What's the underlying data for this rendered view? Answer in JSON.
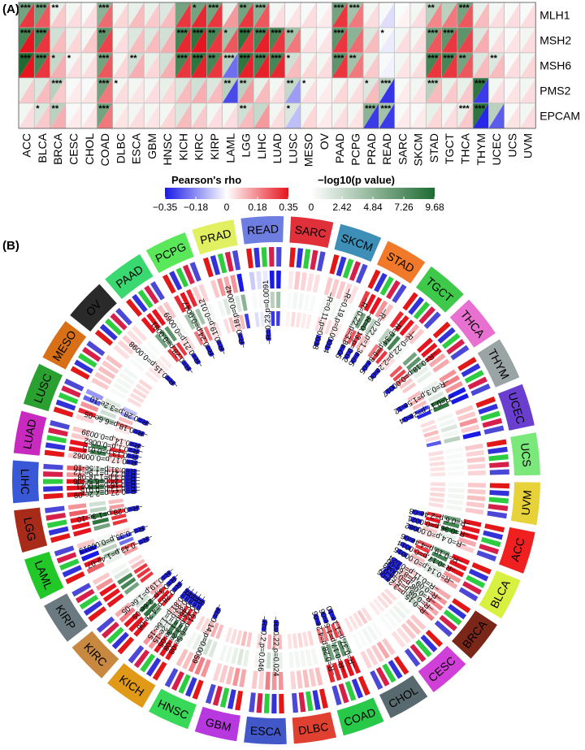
{
  "panel_a_label": "(A)",
  "panel_b_label": "(B)",
  "chart_data": [
    {
      "type": "heatmap",
      "cancers": [
        "ACC",
        "BLCA",
        "BRCA",
        "CESC",
        "CHOL",
        "COAD",
        "DLBC",
        "ESCA",
        "GBM",
        "HNSC",
        "KICH",
        "KIRC",
        "KIRP",
        "LAML",
        "LGG",
        "LIHC",
        "LUAD",
        "LUSC",
        "MESO",
        "OV",
        "PAAD",
        "PCPG",
        "PRAD",
        "READ",
        "SARC",
        "SKCM",
        "STAD",
        "TGCT",
        "THCA",
        "THYM",
        "UCEC",
        "UCS",
        "UVM"
      ],
      "genes": [
        "MLH1",
        "MSH2",
        "MSH6",
        "PMS2",
        "EPCAM"
      ],
      "rho": [
        [
          0.3,
          0.25,
          0.08,
          0.05,
          0.05,
          0.22,
          0.06,
          0.1,
          0.08,
          0.1,
          0.3,
          0.32,
          0.3,
          0.15,
          0.3,
          0.25,
          0.05,
          0.04,
          0.05,
          0.03,
          0.3,
          0.2,
          0.05,
          -0.05,
          0.02,
          0.05,
          0.18,
          0.2,
          0.25,
          0.1,
          0.05,
          0.05,
          0.05
        ],
        [
          0.35,
          0.3,
          0.1,
          0.06,
          0.08,
          0.28,
          0.05,
          0.1,
          0.1,
          0.12,
          0.32,
          0.35,
          0.3,
          0.25,
          0.3,
          0.33,
          0.3,
          0.2,
          0.05,
          0.04,
          0.3,
          0.22,
          0.1,
          -0.03,
          0.05,
          0.05,
          0.25,
          0.3,
          0.28,
          0.12,
          0.05,
          0.04,
          0.05
        ],
        [
          0.35,
          0.3,
          0.12,
          0.05,
          0.05,
          0.25,
          0.06,
          0.12,
          0.06,
          0.12,
          0.3,
          0.33,
          0.3,
          -0.22,
          0.33,
          0.33,
          0.32,
          0.1,
          0.06,
          0.05,
          0.3,
          0.2,
          0.08,
          -0.02,
          0.04,
          0.05,
          0.3,
          0.3,
          0.25,
          0.1,
          0.1,
          0.05,
          0.06
        ],
        [
          0.08,
          0.1,
          0.08,
          0.03,
          0.04,
          0.2,
          0.05,
          0.04,
          0.05,
          0.06,
          0.1,
          0.12,
          0.1,
          -0.28,
          0.15,
          0.1,
          0.05,
          -0.15,
          0.05,
          0.03,
          0.06,
          0.05,
          0.1,
          -0.31,
          0.03,
          0.04,
          0.1,
          0.08,
          0.08,
          -0.3,
          0.05,
          0.04,
          0.05
        ],
        [
          0.05,
          0.08,
          0.12,
          0.03,
          0.04,
          0.2,
          0.04,
          0.05,
          0.04,
          0.06,
          0.1,
          0.08,
          0.05,
          0.05,
          0.1,
          0.15,
          0.05,
          -0.1,
          0.06,
          0.03,
          0.05,
          0.04,
          -0.3,
          -0.3,
          0.03,
          0.03,
          0.06,
          0.05,
          0.08,
          -0.33,
          -0.25,
          0.04,
          0.05
        ]
      ],
      "neglog10p": [
        [
          6.0,
          6.0,
          1.0,
          0.5,
          0.3,
          5.0,
          0.5,
          1.0,
          1.0,
          1.5,
          6.0,
          6.0,
          6.0,
          1.0,
          6.0,
          5.0,
          0.5,
          0.3,
          0.3,
          0.3,
          6.0,
          4.0,
          0.5,
          0.3,
          0.2,
          0.5,
          3.0,
          3.0,
          6.0,
          1.0,
          0.5,
          0.3,
          0.3
        ],
        [
          8.0,
          8.0,
          2.0,
          0.8,
          0.5,
          7.0,
          0.5,
          1.5,
          1.5,
          2.0,
          8.0,
          9.0,
          8.0,
          4.0,
          9.0,
          8.0,
          8.0,
          4.0,
          0.5,
          0.3,
          7.0,
          5.0,
          1.5,
          0.3,
          0.5,
          0.5,
          6.0,
          7.0,
          7.0,
          1.5,
          0.5,
          0.3,
          0.5
        ],
        [
          9.68,
          8.0,
          2.5,
          0.5,
          0.5,
          6.0,
          0.5,
          2.0,
          1.0,
          2.0,
          8.0,
          9.0,
          8.0,
          3.0,
          9.0,
          8.0,
          8.0,
          2.0,
          0.5,
          0.5,
          7.0,
          4.0,
          1.0,
          0.3,
          0.5,
          0.5,
          8.0,
          8.0,
          6.0,
          1.5,
          1.5,
          0.3,
          0.5
        ],
        [
          1.0,
          1.5,
          3.0,
          0.3,
          0.3,
          6.0,
          0.5,
          0.5,
          0.5,
          1.0,
          1.5,
          2.0,
          1.5,
          3.0,
          3.0,
          1.0,
          0.5,
          2.5,
          0.5,
          0.3,
          0.5,
          0.5,
          1.5,
          3.0,
          0.3,
          0.5,
          3.0,
          1.0,
          1.0,
          9.0,
          0.5,
          0.3,
          0.5
        ],
        [
          0.5,
          1.5,
          3.0,
          0.3,
          0.3,
          6.0,
          0.5,
          0.5,
          0.5,
          0.5,
          1.5,
          1.0,
          0.5,
          0.5,
          2.0,
          2.5,
          0.5,
          1.5,
          0.5,
          0.3,
          0.5,
          0.5,
          5.0,
          4.0,
          0.3,
          0.3,
          1.0,
          0.5,
          1.0,
          9.0,
          3.0,
          0.3,
          0.5
        ]
      ],
      "stars": [
        [
          "***",
          "***",
          "**",
          "",
          "",
          "***",
          "",
          "",
          "",
          "",
          "",
          "*",
          "***",
          "",
          "**",
          "***",
          "",
          "",
          "",
          "",
          "***",
          "***",
          "",
          "",
          "",
          "",
          "**",
          "",
          "***",
          "",
          "",
          "",
          ""
        ],
        [
          "***",
          "***",
          "",
          "",
          "",
          "**",
          "",
          "",
          "",
          "",
          "***",
          "***",
          "**",
          "*",
          "***",
          "***",
          "***",
          "**",
          "",
          "",
          "***",
          "",
          "",
          "*",
          "",
          "",
          "***",
          "***",
          "",
          "",
          "",
          "",
          ""
        ],
        [
          "***",
          "***",
          "*",
          "*",
          "",
          "***",
          "",
          "**",
          "",
          "",
          "***",
          "***",
          "**",
          "***",
          "***",
          "***",
          "***",
          "*",
          "",
          "",
          "***",
          "**",
          "",
          "",
          "",
          "",
          "***",
          "***",
          "**",
          "",
          "**",
          "",
          ""
        ],
        [
          "",
          "",
          "***",
          "",
          "",
          "***",
          "*",
          "",
          "",
          "",
          "",
          "",
          "",
          "**",
          "**",
          "",
          "",
          "**",
          "*",
          "",
          "",
          "",
          "*",
          "***",
          "",
          "",
          "***",
          "",
          "",
          "***",
          "",
          "",
          ""
        ],
        [
          "",
          "*",
          "**",
          "",
          "",
          "***",
          "",
          "",
          "",
          "",
          "",
          "",
          "",
          "",
          "**",
          "",
          "",
          "*",
          "",
          "",
          "",
          "",
          "***",
          "***",
          "",
          "",
          "",
          "",
          "***",
          "***",
          "",
          "",
          ""
        ]
      ],
      "legend_rho": {
        "title": "Pearson's rho",
        "ticks": [
          "−0.35",
          "−0.18",
          "0",
          "0.18",
          "0.35"
        ],
        "low": "#1a1ae6",
        "mid": "#ffffff",
        "high": "#e6141e"
      },
      "legend_p": {
        "title": "−log10(p value)",
        "ticks": [
          "0",
          "2.42",
          "4.84",
          "7.26",
          "9.68"
        ],
        "low": "#ffffff",
        "high": "#1f6b32"
      }
    },
    {
      "type": "circular-heatmap",
      "sector_labels": [
        "SARC",
        "SKCM",
        "STAD",
        "TGCT",
        "THCA",
        "THYM",
        "UCEC",
        "UCS",
        "UVM",
        "ACC",
        "BLCA",
        "BRCA",
        "CESC",
        "CHOL",
        "COAD",
        "DLBC",
        "ESCA",
        "GBM",
        "HNSC",
        "KICH",
        "KIRC",
        "KIRP",
        "LAML",
        "LGG",
        "LIHC",
        "LUAD",
        "LUSC",
        "MESO",
        "OV",
        "PAAD",
        "PCPG",
        "PRAD",
        "READ"
      ],
      "sector_colors": [
        "#e0303a",
        "#3d8fb8",
        "#f07a2a",
        "#3fc94a",
        "#e870d0",
        "#9aa4a4",
        "#6a3fd0",
        "#7be87b",
        "#e8d23a",
        "#f02020",
        "#d8f040",
        "#7a2618",
        "#d040d8",
        "#586a70",
        "#28c848",
        "#e04030",
        "#4258c8",
        "#b838e0",
        "#38d858",
        "#e09a18",
        "#c88840",
        "#6a7a80",
        "#22c828",
        "#a82a18",
        "#3858d8",
        "#c82ac0",
        "#2aa030",
        "#d87018",
        "#2a2a2a",
        "#3ad870",
        "#5ae85a",
        "#e0f060",
        "#6e7ee0"
      ],
      "annotations": [
        {
          "text": "R=0.23,p=0.0091",
          "cancer": "READ"
        },
        {
          "text": "R=0.11,p=0.038",
          "cancer": "SKCM"
        },
        {
          "text": "R=0.19,p=0.00014",
          "cancer": "SKCM"
        },
        {
          "text": "R=0.22,p=3.8e-05",
          "cancer": "STAD"
        },
        {
          "text": "R=0.13,p=0.02",
          "cancer": "STAD"
        },
        {
          "text": "R=0.22,p=1.3e-05",
          "cancer": "STAD"
        },
        {
          "text": "R=0.34,p=6.8e-05",
          "cancer": "TGCT"
        },
        {
          "text": "R=0.22,p=2.2e-06",
          "cancer": "TGCT"
        },
        {
          "text": "R=0.18,p=0.00017",
          "cancer": "THCA"
        },
        {
          "text": "R=0.3,p=1.5e-12",
          "cancer": "THYM"
        },
        {
          "text": "R=0.17,p=2e-04",
          "cancer": "THYM"
        },
        {
          "text": "R=0.6,p=2.4e-08",
          "cancer": "ACC"
        },
        {
          "text": "R=0.36,p=0.0021",
          "cancer": "ACC"
        },
        {
          "text": "R=0.4,p=0.00082",
          "cancer": "ACC"
        },
        {
          "text": "R=0.19,p=4.4e-06",
          "cancer": "BLCA"
        },
        {
          "text": "R=0.17,p=0.0014",
          "cancer": "BLCA"
        },
        {
          "text": "R=0.14,p=0.00015",
          "cancer": "BLCA"
        },
        {
          "text": "R=0.11,p=0.024",
          "cancer": "BRCA"
        },
        {
          "text": "R=0.09,p=8.6e-06",
          "cancer": "BRCA"
        },
        {
          "text": "R=0.08,p=0.0043",
          "cancer": "BRCA"
        },
        {
          "text": "R=0.08,p=5.5e-07",
          "cancer": "BRCA"
        },
        {
          "text": "R=0.15,p=3.2e-06",
          "cancer": "BRCA"
        },
        {
          "text": "R=0.37,p=1.1e-10",
          "cancer": "COAD"
        },
        {
          "text": "R=0.17,p=1.5e-06",
          "cancer": "COAD"
        },
        {
          "text": "R=0.28,p=4.2e-06",
          "cancer": "COAD"
        },
        {
          "text": "R=0.22,p=0.024",
          "cancer": "ESCA"
        },
        {
          "text": "R=0.2,p=0.046",
          "cancer": "ESCA"
        },
        {
          "text": "R=0.14,p=0.0059",
          "cancer": "HNSC"
        },
        {
          "text": "R=0.28,p=4.2e-06",
          "cancer": "KIRC"
        },
        {
          "text": "R=0.3,p=2.6e-05",
          "cancer": "KIRC"
        },
        {
          "text": "R=0.19,p=1.6e-05",
          "cancer": "KIRC"
        },
        {
          "text": "R=0.61,p=6.5e-08",
          "cancer": "KICH"
        },
        {
          "text": "R=0.42,p=3.2e-08",
          "cancer": "KICH"
        },
        {
          "text": "R=0.46,p=1.3e-05",
          "cancer": "KICH"
        },
        {
          "text": "R=0.83,p=1.2e-15",
          "cancer": "KICH"
        },
        {
          "text": "R=0.81,p=1.6e-15",
          "cancer": "KICH"
        },
        {
          "text": "R=−0.43,p=1.4e-07",
          "cancer": "LAML"
        },
        {
          "text": "R=−0.33,p=0.00013",
          "cancer": "LAML"
        },
        {
          "text": "R=0.28,p=1.3e-10",
          "cancer": "LGG"
        },
        {
          "text": "R=0.27,p=2.2e-09",
          "cancer": "LIHC"
        },
        {
          "text": "R=0.13,p=0.015",
          "cancer": "LIHC"
        },
        {
          "text": "R=0.16,p=0.0021",
          "cancer": "LIHC"
        },
        {
          "text": "R=0.24,p=6.5e-06",
          "cancer": "LIHC"
        },
        {
          "text": "R=0.3,p=1.1e-08",
          "cancer": "LIHC"
        },
        {
          "text": "R=0.27,p=1.9e-12",
          "cancer": "LIHC"
        },
        {
          "text": "R=0.31,p=1.5e-10",
          "cancer": "LIHC"
        },
        {
          "text": "R=0.17,p=0.00062",
          "cancer": "LUAD"
        },
        {
          "text": "R=0.13,p=0.015",
          "cancer": "LUAD"
        },
        {
          "text": "R=0.1,p=0.0062",
          "cancer": "LUAD"
        },
        {
          "text": "R=0.14,p=0.0039",
          "cancer": "LUAD"
        },
        {
          "text": "R=0.18,p=6.6e-05",
          "cancer": "LUSC"
        },
        {
          "text": "R=0.28,p=3.2e-10",
          "cancer": "LUSC"
        },
        {
          "text": "R=0.15,p=0.0098",
          "cancer": "OV"
        },
        {
          "text": "R=0.28,p=0.0081",
          "cancer": "PAAD"
        },
        {
          "text": "R=0.21,p=0.0069",
          "cancer": "PAAD"
        },
        {
          "text": "R=0.24,p=0.0047",
          "cancer": "PCPG"
        },
        {
          "text": "R=0.19,p=0.012",
          "cancer": "PCPG"
        },
        {
          "text": "R=0.18,p=0.0042",
          "cancer": "PRAD"
        }
      ]
    }
  ]
}
